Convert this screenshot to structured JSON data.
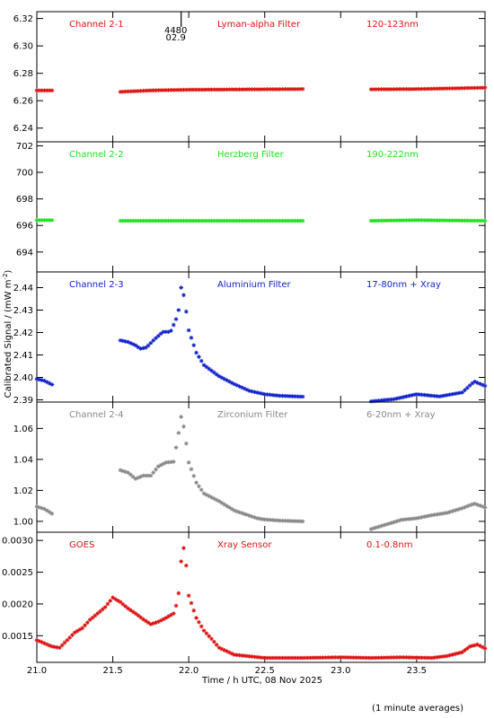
{
  "figure": {
    "ylabel": "Calibrated Signal / (mW m",
    "ylabel_sup": "-2",
    "ylabel_close": ")",
    "xlabel": "Time / h UTC, 08 Nov 2025",
    "footnote": "(1 minute averages)",
    "xlim": [
      21.0,
      23.95
    ],
    "xticks": [
      "21.0",
      "21.5",
      "22.0",
      "22.5",
      "23.0",
      "23.5"
    ],
    "flare_marker": {
      "line1": "4480",
      "line2": "02.9"
    }
  },
  "chart_data": [
    {
      "type": "scatter",
      "channel": "Channel 2-1",
      "filter": "Lyman-alpha Filter",
      "band": "120-123nm",
      "color": "#dd1111",
      "ylim": [
        6.23,
        6.325
      ],
      "yticks": [
        "6.24",
        "6.26",
        "6.28",
        "6.30",
        "6.32"
      ],
      "series": [
        {
          "x": [
            21.0,
            21.1
          ],
          "y": [
            6.2675,
            6.2675
          ]
        },
        {
          "x": [
            21.55,
            21.75,
            22.0,
            22.75
          ],
          "y": [
            6.2665,
            6.2675,
            6.268,
            6.2685
          ]
        },
        {
          "x": [
            23.2,
            23.5,
            23.95
          ],
          "y": [
            6.2683,
            6.2685,
            6.2695
          ]
        }
      ]
    },
    {
      "type": "scatter",
      "channel": "Channel 2-2",
      "filter": "Herzberg Filter",
      "band": "190-222nm",
      "color": "#22dd22",
      "ylim": [
        692.5,
        702.3
      ],
      "yticks": [
        "694",
        "696",
        "698",
        "700",
        "702"
      ],
      "series": [
        {
          "x": [
            21.0,
            21.1
          ],
          "y": [
            696.4,
            696.4
          ]
        },
        {
          "x": [
            21.55,
            22.0,
            22.75
          ],
          "y": [
            696.35,
            696.35,
            696.35
          ]
        },
        {
          "x": [
            23.2,
            23.5,
            23.95
          ],
          "y": [
            696.35,
            696.4,
            696.35
          ]
        }
      ]
    },
    {
      "type": "scatter",
      "channel": "Channel 2-3",
      "filter": "Aluminium Filter",
      "band": "17-80nm + Xray",
      "color": "#1122cc",
      "ylim": [
        2.389,
        2.447
      ],
      "yticks": [
        "2.39",
        "2.40",
        "2.41",
        "2.42",
        "2.43",
        "2.44"
      ],
      "series": [
        {
          "x": [
            21.0,
            21.05,
            21.1
          ],
          "y": [
            2.3993,
            2.3985,
            2.3968
          ]
        },
        {
          "x": [
            21.55,
            21.6,
            21.65,
            21.68,
            21.72,
            21.78,
            21.83,
            21.88,
            21.93,
            21.95,
            21.97,
            22.0,
            22.05,
            22.1,
            22.2,
            22.3,
            22.4,
            22.5,
            22.6,
            22.75
          ],
          "y": [
            2.4165,
            2.4158,
            2.4143,
            2.4128,
            2.4133,
            2.4173,
            2.4203,
            2.4203,
            2.428,
            2.44,
            2.436,
            2.421,
            2.411,
            2.4055,
            2.4005,
            2.397,
            2.394,
            2.3925,
            2.3918,
            2.3914
          ]
        },
        {
          "x": [
            23.2,
            23.35,
            23.5,
            23.65,
            23.8,
            23.88,
            23.95
          ],
          "y": [
            2.3893,
            2.3903,
            2.3925,
            2.3915,
            2.3933,
            2.3982,
            2.3962
          ]
        }
      ]
    },
    {
      "type": "scatter",
      "channel": "Channel 2-4",
      "filter": "Zirconium Filter",
      "band": "6-20nm + Xray",
      "color": "#888888",
      "ylim": [
        0.993,
        1.077
      ],
      "yticks": [
        "1.00",
        "1.02",
        "1.04",
        "1.06"
      ],
      "series": [
        {
          "x": [
            21.0,
            21.05,
            21.1
          ],
          "y": [
            1.0095,
            1.008,
            1.005
          ]
        },
        {
          "x": [
            21.55,
            21.6,
            21.65,
            21.7,
            21.75,
            21.8,
            21.85,
            21.9,
            21.93,
            21.95,
            21.97,
            22.0,
            22.05,
            22.1,
            22.2,
            22.3,
            22.45,
            22.5,
            22.6,
            22.75
          ],
          "y": [
            1.033,
            1.0315,
            1.0275,
            1.0295,
            1.0295,
            1.0355,
            1.038,
            1.0385,
            1.055,
            1.0675,
            1.06,
            1.038,
            1.025,
            1.018,
            1.013,
            1.007,
            1.002,
            1.0012,
            1.0005,
            1.0
          ]
        },
        {
          "x": [
            23.2,
            23.3,
            23.4,
            23.5,
            23.6,
            23.7,
            23.8,
            23.88,
            23.95
          ],
          "y": [
            0.995,
            0.998,
            1.001,
            1.002,
            1.004,
            1.0055,
            1.0085,
            1.0115,
            1.009
          ]
        }
      ]
    },
    {
      "type": "scatter",
      "channel": "GOES",
      "filter": "Xray Sensor",
      "band": "0.1-0.8nm",
      "color": "#dd1111",
      "ylim": [
        0.00108,
        0.00313
      ],
      "yticks": [
        "0.0015",
        "0.0020",
        "0.0025",
        "0.0030"
      ],
      "series": [
        {
          "x": [
            21.0,
            21.05,
            21.1,
            21.15,
            21.2,
            21.25,
            21.3,
            21.35,
            21.4,
            21.45,
            21.5,
            21.55,
            21.6,
            21.65,
            21.7,
            21.75,
            21.8,
            21.85,
            21.9,
            21.93,
            21.95,
            21.96,
            21.98,
            22.0,
            22.05,
            22.1,
            22.15,
            22.2,
            22.3,
            22.5,
            22.75,
            23.0,
            23.2,
            23.4,
            23.6,
            23.7,
            23.8,
            23.85,
            23.9,
            23.95
          ],
          "y": [
            0.00143,
            0.00138,
            0.00133,
            0.00131,
            0.00143,
            0.00155,
            0.00162,
            0.00175,
            0.00185,
            0.00195,
            0.0021,
            0.00203,
            0.00193,
            0.00185,
            0.00176,
            0.00168,
            0.00172,
            0.00178,
            0.00185,
            0.00207,
            0.00267,
            0.00297,
            0.0027,
            0.00213,
            0.00178,
            0.00158,
            0.00145,
            0.00131,
            0.0012,
            0.00115,
            0.00115,
            0.00116,
            0.00115,
            0.00116,
            0.00115,
            0.00118,
            0.00124,
            0.00133,
            0.00136,
            0.0013
          ]
        }
      ]
    }
  ]
}
